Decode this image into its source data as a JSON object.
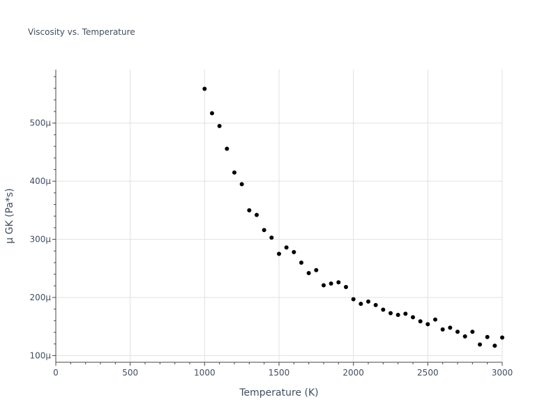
{
  "chart_data": {
    "type": "scatter",
    "title": "Viscosity vs. Temperature",
    "xlabel": "Temperature (K)",
    "ylabel": "μ GK (Pa*s)",
    "xlim": [
      0,
      3000
    ],
    "ylim": [
      8.85e-05,
      0.000592
    ],
    "grid": true,
    "legend": "none",
    "marker_color": "#000000",
    "x_ticks": [
      {
        "value": 0,
        "label": "0"
      },
      {
        "value": 500,
        "label": "500"
      },
      {
        "value": 1000,
        "label": "1000"
      },
      {
        "value": 1500,
        "label": "1500"
      },
      {
        "value": 2000,
        "label": "2000"
      },
      {
        "value": 2500,
        "label": "2500"
      },
      {
        "value": 3000,
        "label": "3000"
      }
    ],
    "y_ticks": [
      {
        "value": 0.0001,
        "label": "100μ"
      },
      {
        "value": 0.0002,
        "label": "200μ"
      },
      {
        "value": 0.0003,
        "label": "300μ"
      },
      {
        "value": 0.0004,
        "label": "400μ"
      },
      {
        "value": 0.0005,
        "label": "500μ"
      }
    ],
    "points": [
      [
        1000,
        0.000559
      ],
      [
        1050,
        0.000517
      ],
      [
        1100,
        0.000495
      ],
      [
        1150,
        0.000456
      ],
      [
        1200,
        0.000415
      ],
      [
        1250,
        0.000395
      ],
      [
        1300,
        0.00035
      ],
      [
        1350,
        0.000342
      ],
      [
        1400,
        0.000316
      ],
      [
        1450,
        0.000303
      ],
      [
        1500,
        0.000275
      ],
      [
        1550,
        0.000286
      ],
      [
        1600,
        0.000278
      ],
      [
        1650,
        0.00026
      ],
      [
        1700,
        0.000242
      ],
      [
        1750,
        0.000247
      ],
      [
        1800,
        0.000221
      ],
      [
        1850,
        0.000224
      ],
      [
        1900,
        0.000226
      ],
      [
        1950,
        0.000218
      ],
      [
        2000,
        0.000197
      ],
      [
        2050,
        0.000189
      ],
      [
        2100,
        0.000193
      ],
      [
        2150,
        0.000187
      ],
      [
        2200,
        0.000179
      ],
      [
        2250,
        0.000173
      ],
      [
        2300,
        0.00017
      ],
      [
        2350,
        0.000172
      ],
      [
        2400,
        0.000166
      ],
      [
        2450,
        0.000159
      ],
      [
        2500,
        0.000154
      ],
      [
        2550,
        0.000162
      ],
      [
        2600,
        0.000145
      ],
      [
        2650,
        0.000148
      ],
      [
        2700,
        0.000141
      ],
      [
        2750,
        0.000133
      ],
      [
        2800,
        0.000141
      ],
      [
        2850,
        0.000119
      ],
      [
        2900,
        0.000132
      ],
      [
        2950,
        0.000117
      ],
      [
        3000,
        0.000131
      ]
    ]
  }
}
